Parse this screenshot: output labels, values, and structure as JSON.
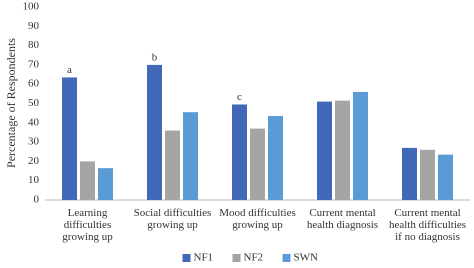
{
  "chart_data": {
    "type": "bar",
    "y_label": "Percentage of Respondents",
    "categories": [
      "Learning difficulties growing up",
      "Social difficulties growing up",
      "Mood difficulties growing up",
      "Current mental health diagnosis",
      "Current mental health difficulties if no diagnosis"
    ],
    "series": [
      {
        "name": "NF1",
        "color": "#4169b8",
        "values": [
          63.5,
          70,
          49.5,
          51,
          27
        ],
        "labels": [
          "a",
          "b",
          "c",
          null,
          null
        ]
      },
      {
        "name": "NF2",
        "color": "#a5a5a5",
        "values": [
          20,
          36,
          37,
          51.5,
          26
        ]
      },
      {
        "name": "SWN",
        "color": "#5b9bd5",
        "values": [
          16.5,
          45.5,
          43.5,
          56,
          23.5
        ]
      }
    ],
    "ylim": [
      0,
      100
    ],
    "yticks": [
      0,
      10,
      20,
      30,
      40,
      50,
      60,
      70,
      80,
      90,
      100
    ],
    "grid": false,
    "legend": "bottom"
  }
}
